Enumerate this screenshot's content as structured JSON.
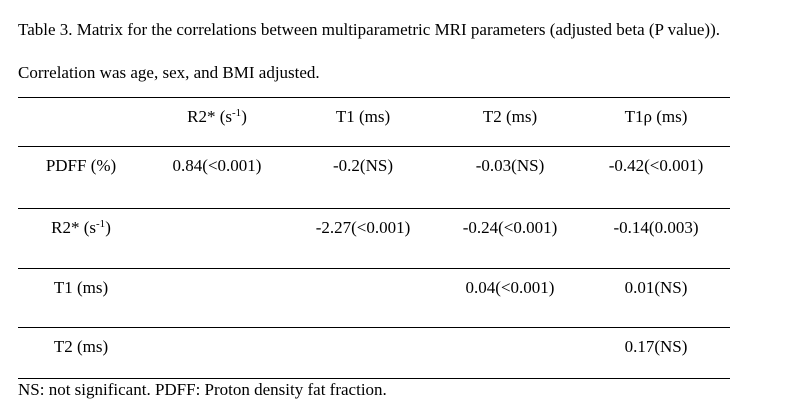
{
  "caption": "Table 3. Matrix for the correlations between multiparametric MRI parameters (adjusted beta (P value)). Correlation was age, sex, and BMI adjusted.",
  "table": {
    "header": [
      null,
      {
        "base": "R2* (s",
        "sup": "-1",
        "tail": ")"
      },
      {
        "base": "T1 (ms)"
      },
      {
        "base": "T2 (ms)"
      },
      {
        "base": "T1ρ (ms)"
      }
    ],
    "rows": [
      [
        {
          "base": "PDFF (%)"
        },
        "0.84(<0.001)",
        "-0.2(NS)",
        "-0.03(NS)",
        "-0.42(<0.001)"
      ],
      [
        {
          "base": "R2* (s",
          "sup": "-1",
          "tail": ")"
        },
        null,
        "-2.27(<0.001)",
        "-0.24(<0.001)",
        "-0.14(0.003)"
      ],
      [
        {
          "base": "T1 (ms)"
        },
        null,
        null,
        "0.04(<0.001)",
        "0.01(NS)"
      ],
      [
        {
          "base": "T2 (ms)"
        },
        null,
        null,
        null,
        "0.17(NS)"
      ]
    ]
  },
  "footnote": "NS: not significant. PDFF: Proton density fat fraction."
}
